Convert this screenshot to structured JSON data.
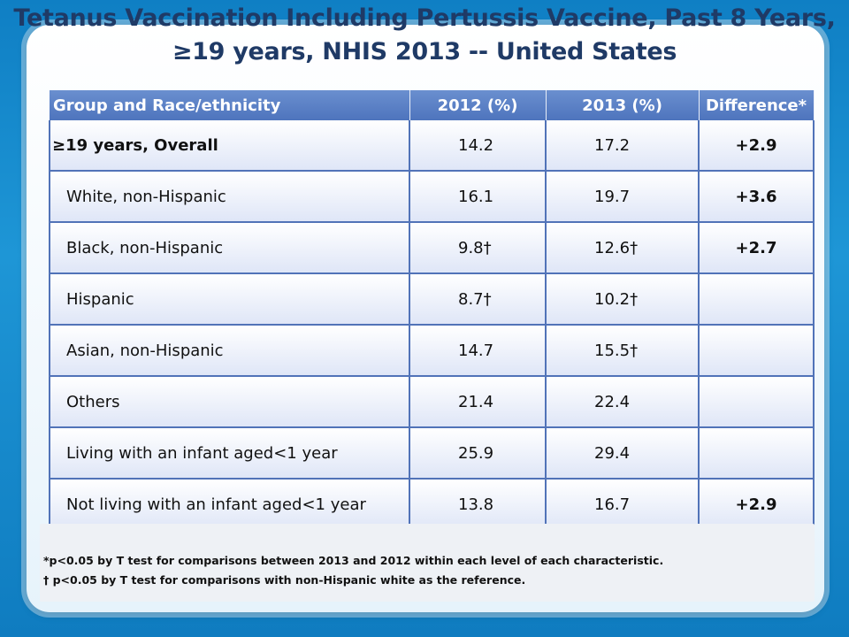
{
  "title_line1": "Tetanus Vaccination Including Pertussis Vaccine, Past 8 Years,",
  "title_line2": "≥19 years, NHIS 2013 -- United States",
  "table": {
    "headers": [
      "Group and Race/ethnicity",
      "2012 (%)",
      "2013 (%)",
      "Difference*"
    ],
    "rows": [
      {
        "group": "≥19 years, Overall",
        "y2012": "14.2",
        "y2013": "17.2",
        "diff": "+2.9"
      },
      {
        "group": "White, non-Hispanic",
        "y2012": "16.1",
        "y2013": "19.7",
        "diff": "+3.6"
      },
      {
        "group": "Black, non-Hispanic",
        "y2012": "9.8†",
        "y2013": "12.6†",
        "diff": "+2.7"
      },
      {
        "group": "Hispanic",
        "y2012": "8.7†",
        "y2013": "10.2†",
        "diff": ""
      },
      {
        "group": "Asian, non-Hispanic",
        "y2012": "14.7",
        "y2013": "15.5†",
        "diff": ""
      },
      {
        "group": "Others",
        "y2012": "21.4",
        "y2013": "22.4",
        "diff": ""
      },
      {
        "group": "Living with an infant aged<1 year",
        "y2012": "25.9",
        "y2013": "29.4",
        "diff": ""
      },
      {
        "group": "Not living with an infant aged<1 year",
        "y2012": "13.8",
        "y2013": "16.7",
        "diff": "+2.9"
      }
    ]
  },
  "footnotes": {
    "note1": "*p<0.05 by T test for comparisons between 2013 and 2012 within each level of each characteristic.",
    "note2": "† p<0.05 by T test for comparisons with non-Hispanic white as the reference."
  },
  "colors": {
    "background": "#1a8fd0",
    "title": "#1f3a66",
    "header": "#4e74bd",
    "border": "#5173b8"
  }
}
